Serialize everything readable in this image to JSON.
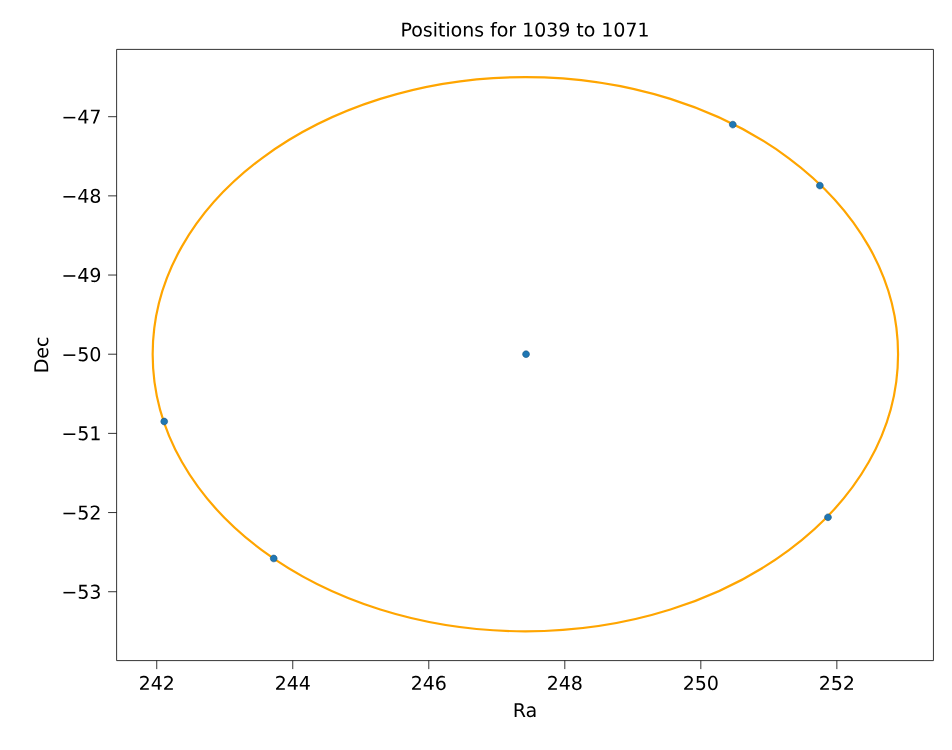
{
  "chart_data": {
    "type": "scatter",
    "title": "Positions for 1039 to 1071",
    "xlabel": "Ra",
    "ylabel": "Dec",
    "xlim": [
      241.41,
      253.42
    ],
    "ylim": [
      -53.87,
      -46.15
    ],
    "xticks": [
      242,
      244,
      246,
      248,
      250,
      252
    ],
    "yticks": [
      {
        "value": -53,
        "label": "−53"
      },
      {
        "value": -52,
        "label": "−52"
      },
      {
        "value": -51,
        "label": "−51"
      },
      {
        "value": -50,
        "label": "−50"
      },
      {
        "value": -49,
        "label": "−49"
      },
      {
        "value": -48,
        "label": "−48"
      },
      {
        "value": -47,
        "label": "−47"
      }
    ],
    "grid": false,
    "series": [
      {
        "color": "#1f77b4",
        "x": [
          247.43,
          242.11,
          243.72,
          250.47,
          251.75,
          251.87
        ],
        "values": [
          -50.0,
          -50.85,
          -52.58,
          -47.1,
          -47.87,
          -52.06
        ]
      }
    ]
  }
}
